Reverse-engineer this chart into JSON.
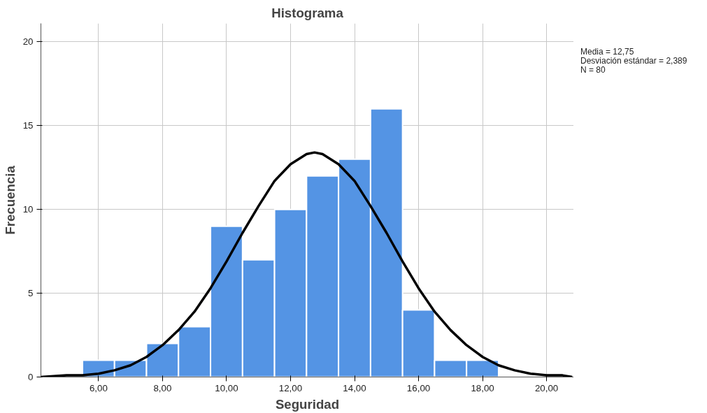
{
  "chart_data": {
    "type": "histogram",
    "title": "Histograma",
    "xlabel": "Seguridad",
    "ylabel": "Frecuencia",
    "xlim": [
      4.2,
      20.85
    ],
    "ylim": [
      0,
      21.1
    ],
    "xticks": [
      {
        "value": 6,
        "label": "6,00"
      },
      {
        "value": 8,
        "label": "8,00"
      },
      {
        "value": 10,
        "label": "10,00"
      },
      {
        "value": 12,
        "label": "12,00"
      },
      {
        "value": 14,
        "label": "14,00"
      },
      {
        "value": 16,
        "label": "16,00"
      },
      {
        "value": 18,
        "label": "18,00"
      },
      {
        "value": 20,
        "label": "20,00"
      }
    ],
    "yticks": [
      0,
      5,
      10,
      15,
      20
    ],
    "grid": true,
    "annotations": [
      "Media = 12,75",
      "Desviación estándar = 2,389",
      "N = 80"
    ],
    "series": [
      {
        "color": "#5494e4",
        "bins": [
          5.5,
          6.5,
          7.5,
          8.5,
          9.5,
          10.5,
          11.5,
          12.5,
          13.5,
          14.5,
          15.5,
          16.5,
          17.5,
          18.5
        ],
        "values": [
          1,
          1,
          2,
          3,
          9,
          7,
          10,
          12,
          13,
          16,
          4,
          1,
          1
        ]
      },
      {
        "type": "line",
        "color": "#000000",
        "x": [
          4.2,
          5,
          5.5,
          6,
          6.5,
          7,
          7.5,
          8,
          8.5,
          9,
          9.5,
          10,
          10.5,
          11,
          11.5,
          12,
          12.5,
          12.75,
          13,
          13.5,
          14,
          14.5,
          15,
          15.5,
          16,
          16.5,
          17,
          17.5,
          18,
          18.5,
          19,
          19.5,
          20,
          20.5,
          20.8
        ],
        "values": [
          0,
          0.1,
          0.1,
          0.2,
          0.4,
          0.7,
          1.2,
          1.9,
          2.8,
          3.9,
          5.3,
          6.9,
          8.6,
          10.2,
          11.7,
          12.7,
          13.3,
          13.4,
          13.3,
          12.7,
          11.7,
          10.2,
          8.6,
          6.9,
          5.3,
          3.9,
          2.8,
          1.9,
          1.2,
          0.7,
          0.4,
          0.2,
          0.1,
          0.1,
          0
        ]
      }
    ]
  }
}
